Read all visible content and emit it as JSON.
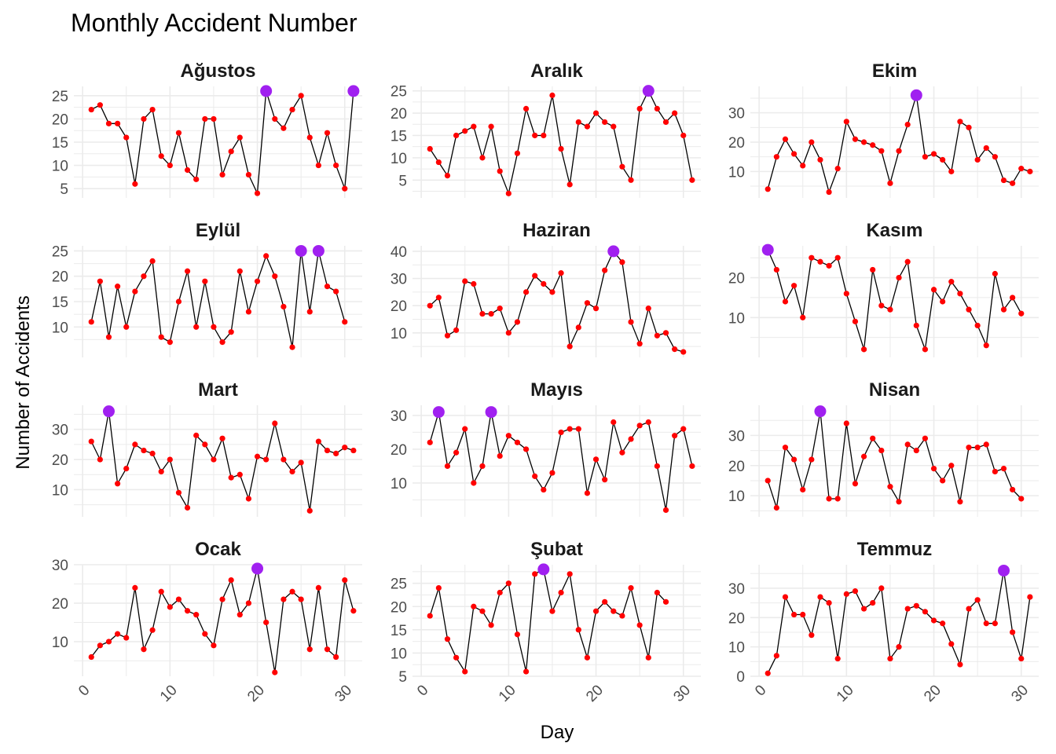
{
  "chart_data": {
    "type": "line",
    "title": "Monthly Accident Number",
    "xlabel": "Day",
    "ylabel": "Number of Accidents",
    "grid": true,
    "legend": "none",
    "colors": {
      "line": "#000000",
      "point": "#ff0000",
      "max_point": "#a020f0",
      "grid": "#ebebeb"
    },
    "x_ticks": [
      0,
      10,
      20,
      30
    ],
    "xlim": [
      -1,
      32
    ],
    "panels": [
      {
        "name": "Ağustos",
        "ylim": [
          3,
          27
        ],
        "yticks": [
          5,
          10,
          15,
          20,
          25
        ],
        "values": [
          22,
          23,
          19,
          19,
          16,
          6,
          20,
          22,
          12,
          10,
          17,
          9,
          7,
          20,
          20,
          8,
          13,
          16,
          8,
          4,
          26,
          20,
          18,
          22,
          25,
          16,
          10,
          17,
          10,
          5,
          26
        ]
      },
      {
        "name": "Aralık",
        "ylim": [
          1,
          26
        ],
        "yticks": [
          5,
          10,
          15,
          20,
          25
        ],
        "values": [
          12,
          9,
          6,
          15,
          16,
          17,
          10,
          17,
          7,
          2,
          11,
          21,
          15,
          15,
          24,
          12,
          4,
          18,
          17,
          20,
          18,
          17,
          8,
          5,
          21,
          25,
          21,
          18,
          20,
          15,
          5
        ]
      },
      {
        "name": "Ekim",
        "ylim": [
          1,
          39
        ],
        "yticks": [
          10,
          20,
          30
        ],
        "values": [
          4,
          15,
          21,
          16,
          12,
          20,
          14,
          3,
          11,
          27,
          21,
          20,
          19,
          17,
          6,
          17,
          26,
          36,
          15,
          16,
          14,
          10,
          27,
          25,
          14,
          18,
          15,
          7,
          6,
          11,
          10
        ]
      },
      {
        "name": "Eylül",
        "ylim": [
          4,
          26
        ],
        "yticks": [
          10,
          15,
          20,
          25
        ],
        "values": [
          11,
          19,
          8,
          18,
          10,
          17,
          20,
          23,
          8,
          7,
          15,
          21,
          10,
          19,
          10,
          7,
          9,
          21,
          13,
          19,
          24,
          20,
          14,
          6,
          25,
          13,
          25,
          18,
          17,
          11
        ]
      },
      {
        "name": "Haziran",
        "ylim": [
          1,
          42
        ],
        "yticks": [
          10,
          20,
          30,
          40
        ],
        "values": [
          20,
          23,
          9,
          11,
          29,
          28,
          17,
          17,
          19,
          10,
          14,
          25,
          31,
          28,
          25,
          32,
          5,
          12,
          21,
          19,
          33,
          40,
          36,
          14,
          6,
          19,
          9,
          10,
          4,
          3
        ]
      },
      {
        "name": "Kasım",
        "ylim": [
          0,
          28
        ],
        "yticks": [
          10,
          20
        ],
        "values": [
          27,
          22,
          14,
          18,
          10,
          25,
          24,
          23,
          25,
          16,
          9,
          2,
          22,
          13,
          12,
          20,
          24,
          8,
          2,
          17,
          14,
          19,
          16,
          12,
          8,
          3,
          21,
          12,
          15,
          11
        ]
      },
      {
        "name": "Mart",
        "ylim": [
          1,
          38
        ],
        "yticks": [
          10,
          20,
          30
        ],
        "values": [
          26,
          20,
          36,
          12,
          17,
          25,
          23,
          22,
          16,
          20,
          9,
          4,
          28,
          25,
          20,
          27,
          14,
          15,
          7,
          21,
          20,
          32,
          20,
          16,
          19,
          3,
          26,
          23,
          22,
          24,
          23
        ]
      },
      {
        "name": "Mayıs",
        "ylim": [
          0,
          33
        ],
        "yticks": [
          10,
          20,
          30
        ],
        "values": [
          22,
          31,
          15,
          19,
          26,
          10,
          15,
          31,
          18,
          24,
          22,
          20,
          12,
          8,
          13,
          25,
          26,
          26,
          7,
          17,
          11,
          28,
          19,
          23,
          27,
          28,
          15,
          2,
          24,
          26,
          15
        ]
      },
      {
        "name": "Nisan",
        "ylim": [
          3,
          40
        ],
        "yticks": [
          10,
          20,
          30
        ],
        "values": [
          15,
          6,
          26,
          22,
          12,
          22,
          38,
          9,
          9,
          34,
          14,
          23,
          29,
          25,
          13,
          8,
          27,
          25,
          29,
          19,
          15,
          20,
          8,
          26,
          26,
          27,
          18,
          19,
          12,
          9
        ]
      },
      {
        "name": "Ocak",
        "ylim": [
          1,
          30
        ],
        "yticks": [
          10,
          20,
          30
        ],
        "values": [
          6,
          9,
          10,
          12,
          11,
          24,
          8,
          13,
          23,
          19,
          21,
          18,
          17,
          12,
          9,
          21,
          26,
          17,
          20,
          29,
          15,
          2,
          21,
          23,
          21,
          8,
          24,
          8,
          6,
          26,
          18
        ]
      },
      {
        "name": "Şubat",
        "ylim": [
          5,
          29
        ],
        "yticks": [
          5,
          10,
          15,
          20,
          25
        ],
        "values": [
          18,
          24,
          13,
          9,
          6,
          20,
          19,
          16,
          23,
          25,
          14,
          6,
          27,
          28,
          19,
          23,
          27,
          15,
          9,
          19,
          21,
          19,
          18,
          24,
          16,
          9,
          23,
          21
        ]
      },
      {
        "name": "Temmuz",
        "ylim": [
          0,
          38
        ],
        "yticks": [
          0,
          10,
          20,
          30
        ],
        "values": [
          1,
          7,
          27,
          21,
          21,
          14,
          27,
          25,
          6,
          28,
          29,
          23,
          25,
          30,
          6,
          10,
          23,
          24,
          22,
          19,
          18,
          11,
          4,
          23,
          26,
          18,
          18,
          36,
          15,
          6,
          27
        ]
      }
    ]
  }
}
